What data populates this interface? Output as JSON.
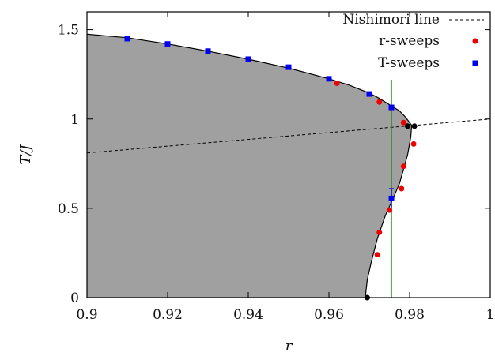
{
  "chart_data": {
    "type": "scatter",
    "xlabel": "r",
    "ylabel": "T/J",
    "xlim": [
      0.9,
      1.0
    ],
    "ylim": [
      0,
      1.6
    ],
    "xticks": [
      0.9,
      0.92,
      0.94,
      0.96,
      0.98,
      1.0
    ],
    "xtick_labels": [
      "0.9",
      "0.92",
      "0.94",
      "0.96",
      "0.98",
      "1"
    ],
    "yticks": [
      0,
      0.5,
      1,
      1.5
    ],
    "ytick_labels": [
      "0",
      "0.5",
      "1",
      "1.5"
    ],
    "grid": false,
    "legend_position": "top-right",
    "legend": [
      {
        "label": "Nishimori line",
        "style": "dashed-line",
        "color": "#000000"
      },
      {
        "label": "r-sweeps",
        "style": "circle",
        "color": "#ee0000"
      },
      {
        "label": "T-sweeps",
        "style": "square",
        "color": "#0000ee"
      }
    ],
    "phase_boundary": {
      "fill_color": "#a0a0a0",
      "points": [
        [
          0.9,
          1.475
        ],
        [
          0.91,
          1.455
        ],
        [
          0.92,
          1.42
        ],
        [
          0.93,
          1.38
        ],
        [
          0.94,
          1.335
        ],
        [
          0.95,
          1.285
        ],
        [
          0.96,
          1.225
        ],
        [
          0.965,
          1.19
        ],
        [
          0.97,
          1.145
        ],
        [
          0.9725,
          1.115
        ],
        [
          0.975,
          1.08
        ],
        [
          0.9775,
          1.045
        ],
        [
          0.979,
          1.01
        ],
        [
          0.9805,
          0.965
        ],
        [
          0.9803,
          0.9
        ],
        [
          0.9795,
          0.8
        ],
        [
          0.9785,
          0.72
        ],
        [
          0.9775,
          0.64
        ],
        [
          0.976,
          0.56
        ],
        [
          0.974,
          0.46
        ],
        [
          0.972,
          0.33
        ],
        [
          0.9705,
          0.2
        ],
        [
          0.9695,
          0.1
        ],
        [
          0.969,
          0.0
        ]
      ]
    },
    "nishimori_line": {
      "x": [
        0.9,
        1.0
      ],
      "y": [
        0.81,
        1.0
      ],
      "color": "#000000"
    },
    "vertical_line": {
      "x": 0.9755,
      "color": "#1a8a1a"
    },
    "series": [
      {
        "name": "r-sweeps",
        "color": "#ee0000",
        "marker": "circle",
        "points": [
          [
            0.962,
            1.2
          ],
          [
            0.9725,
            1.095
          ],
          [
            0.9785,
            0.98
          ],
          [
            0.981,
            0.86
          ],
          [
            0.9785,
            0.735
          ],
          [
            0.978,
            0.61
          ],
          [
            0.975,
            0.49
          ],
          [
            0.9725,
            0.365
          ],
          [
            0.972,
            0.24
          ]
        ]
      },
      {
        "name": "T-sweeps",
        "color": "#0000ee",
        "marker": "square",
        "points": [
          [
            0.91,
            1.45
          ],
          [
            0.92,
            1.42
          ],
          [
            0.93,
            1.38
          ],
          [
            0.94,
            1.335
          ],
          [
            0.95,
            1.29
          ],
          [
            0.96,
            1.225
          ],
          [
            0.97,
            1.14
          ],
          [
            0.9755,
            1.065
          ],
          [
            0.9755,
            0.555
          ]
        ],
        "error_bars": [
          {
            "x": 0.9755,
            "y": 0.555,
            "ylow": 0.5,
            "yhigh": 0.61
          }
        ]
      },
      {
        "name": "",
        "color": "#000000",
        "marker": "circle",
        "points": [
          [
            0.9795,
            0.96
          ],
          [
            0.9812,
            0.96
          ],
          [
            0.9695,
            0.0
          ]
        ]
      }
    ]
  }
}
